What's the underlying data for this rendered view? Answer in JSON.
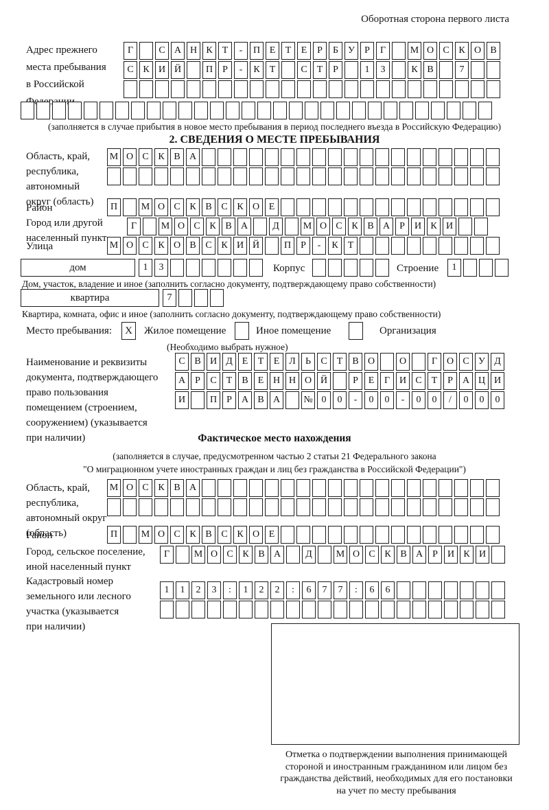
{
  "header": {
    "note": "Оборотная сторона первого листа"
  },
  "prev_address": {
    "label_lines": [
      "Адрес прежнего",
      "места пребывания",
      "в Российской",
      "Федерации"
    ],
    "row1": {
      "text": "Г САНКТ-ПЕТЕРБУРГ МОСКОВ",
      "len": 24
    },
    "row2": {
      "text": "СКИЙ ПР-КТ СТР 13 КВ 7",
      "len": 24
    },
    "row3": {
      "text": "",
      "len": 24
    },
    "row4": {
      "text": "",
      "len": 30
    },
    "note": "(заполняется в случае прибытия в новое место пребывания в период последнего въезда в Российскую Федерацию)"
  },
  "section2": {
    "title": "2. СВЕДЕНИЯ О МЕСТЕ ПРЕБЫВАНИЯ",
    "region": {
      "label_lines": [
        "Область, край,",
        "республика,",
        "автономный",
        "округ (область)"
      ],
      "row1": {
        "text": "МОСКВА",
        "len": 25
      },
      "row2": {
        "text": "",
        "len": 25
      }
    },
    "district": {
      "label": "Район",
      "row": {
        "text": "П МОСКВСКОЕ",
        "len": 25
      }
    },
    "city": {
      "label_lines": [
        "Город или другой",
        "населенный пункт"
      ],
      "row": {
        "text": "Г МОСКВА Д МОСКВАРИКИ",
        "len": 23
      }
    },
    "street": {
      "label": "Улица",
      "row": {
        "text": "МОСКОВСКИЙ ПР-КТ",
        "len": 25
      }
    },
    "house": {
      "box_label": "дом",
      "number": {
        "text": "13",
        "len": 8
      },
      "korpus_label": "Корпус",
      "korpus": {
        "text": "",
        "len": 5
      },
      "stroenie_label": "Строение",
      "stroenie": {
        "text": "1",
        "len": 4
      },
      "note": "Дом, участок, владение и иное (заполнить согласно документу, подтверждающему право собственности)"
    },
    "apartment": {
      "box_label": "квартира",
      "number": {
        "text": "7",
        "len": 4
      },
      "note": "Квартира, комната, офис и иное (заполнить согласно документу, подтверждающему право собственности)"
    },
    "stay_type": {
      "label": "Место пребывания:",
      "options": [
        {
          "label": "Жилое помещение",
          "mark": "X"
        },
        {
          "label": "Иное помещение",
          "mark": ""
        },
        {
          "label": "Организация",
          "mark": ""
        }
      ],
      "note": "(Необходимо выбрать нужное)"
    },
    "document": {
      "label_lines": [
        "Наименование и реквизиты",
        "документа, подтверждающего",
        "право пользования",
        "помещением (строением,",
        "сооружением) (указывается",
        "при наличии)"
      ],
      "row1": {
        "text": "СВИДЕТЕЛЬСТВО О ГОСУД",
        "len": 21
      },
      "row2": {
        "text": "АРСТВЕННОЙ РЕГИСТРАЦИ",
        "len": 21
      },
      "row3": {
        "text": "И ПРАВА №00-00-00/000",
        "len": 21
      }
    }
  },
  "actual_location": {
    "title": "Фактическое место нахождения",
    "note_lines": [
      "(заполняется в случае, предусмотренном частью 2 статьи 21 Федерального закона",
      "\"О миграционном учете иностранных граждан и лиц без гражданства в Российской Федерации\")"
    ],
    "region": {
      "label_lines": [
        "Область, край,",
        "республика,",
        "автономный округ",
        "(область)"
      ],
      "row1": {
        "text": "МОСКВА",
        "len": 25
      },
      "row2": {
        "text": "",
        "len": 25
      }
    },
    "district": {
      "label": "Район",
      "row": {
        "text": "П МОСКВСКОЕ",
        "len": 25
      }
    },
    "city": {
      "label_lines": [
        "Город, сельское поселение,",
        "иной населенный пункт"
      ],
      "row": {
        "text": "Г МОСКВА Д МОСКВАРИКИ",
        "len": 22
      }
    },
    "cadastral": {
      "label_lines": [
        "Кадастровый номер",
        "земельного или лесного",
        "участка (указывается",
        "при наличии)"
      ],
      "row1": {
        "text": "1123:122:677:66",
        "len": 22
      },
      "row2": {
        "text": "",
        "len": 22
      }
    }
  },
  "stamp": {
    "caption_lines": [
      "Отметка о подтверждении выполнения принимающей",
      "стороной и иностранным гражданином или лицом без",
      "гражданства действий, необходимых для его постановки",
      "на учет по месту пребывания"
    ]
  }
}
